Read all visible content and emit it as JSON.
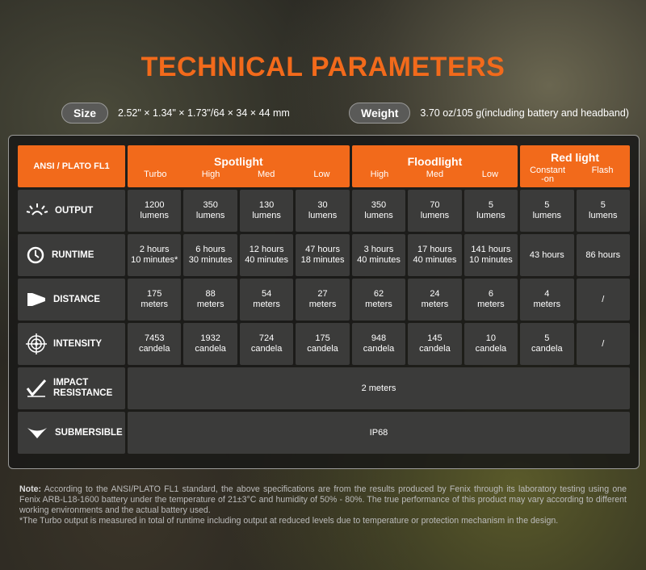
{
  "title": "TECHNICAL PARAMETERS",
  "size": {
    "label": "Size",
    "value": "2.52\" × 1.34\" × 1.73\"/64 × 34 × 44 mm"
  },
  "weight": {
    "label": "Weight",
    "value": "3.70 oz/105 g(including battery and headband)"
  },
  "table": {
    "corner": "ANSI / PLATO FL1",
    "groups": [
      {
        "name": "Spotlight",
        "modes": [
          "Turbo",
          "High",
          "Med",
          "Low"
        ]
      },
      {
        "name": "Floodlight",
        "modes": [
          "High",
          "Med",
          "Low"
        ]
      },
      {
        "name": "Red light",
        "modes": [
          "Constant\n-on",
          "Flash"
        ]
      }
    ],
    "rows": [
      {
        "label": "OUTPUT",
        "cells": [
          "1200\nlumens",
          "350\nlumens",
          "130\nlumens",
          "30\nlumens",
          "350\nlumens",
          "70\nlumens",
          "5\nlumens",
          "5\nlumens",
          "5\nlumens"
        ]
      },
      {
        "label": "RUNTIME",
        "cells": [
          "2 hours\n10 minutes*",
          "6 hours\n30 minutes",
          "12 hours\n40 minutes",
          "47 hours\n18 minutes",
          "3 hours\n40 minutes",
          "17 hours\n40 minutes",
          "141 hours\n10 minutes",
          "43 hours",
          "86 hours"
        ]
      },
      {
        "label": "DISTANCE",
        "cells": [
          "175\nmeters",
          "88\nmeters",
          "54\nmeters",
          "27\nmeters",
          "62\nmeters",
          "24\nmeters",
          "6\nmeters",
          "4\nmeters",
          "/"
        ]
      },
      {
        "label": "INTENSITY",
        "cells": [
          "7453\ncandela",
          "1932\ncandela",
          "724\ncandela",
          "175\ncandela",
          "948\ncandela",
          "145\ncandela",
          "10\ncandela",
          "5\ncandela",
          "/"
        ]
      },
      {
        "label": "IMPACT\nRESISTANCE",
        "cells": [
          "2 meters"
        ]
      },
      {
        "label": "SUBMERSIBLE",
        "cells": [
          "IP68"
        ]
      }
    ]
  },
  "note": {
    "label": "Note:",
    "text": "According to the ANSI/PLATO FL1 standard, the above specifications are from the results produced by Fenix through its laboratory testing using one Fenix ARB-L18-1600 battery under the temperature of 21±3°C and humidity of 50% - 80%. The true performance of this product may vary according to different working environments and the actual battery used.",
    "footnote": "*The Turbo output is measured in total of runtime including output at reduced levels due to temperature or protection mechanism in the design."
  }
}
